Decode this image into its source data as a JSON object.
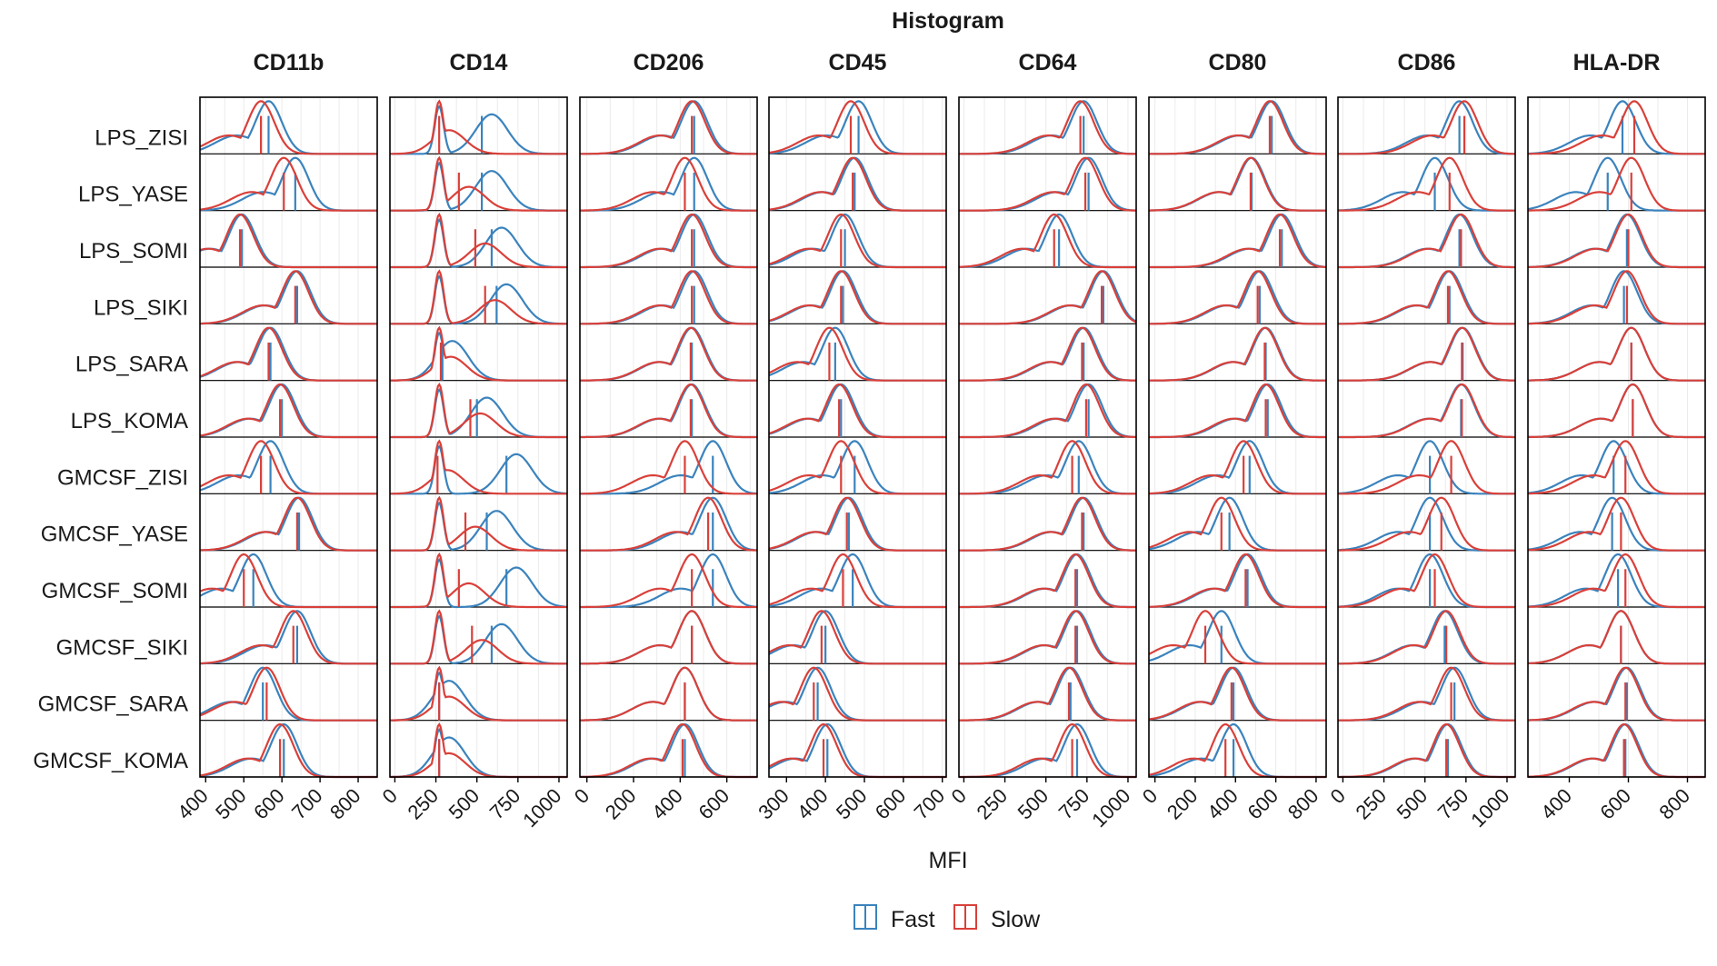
{
  "chart_data": {
    "type": "density-histogram-grid",
    "title": "Histogram",
    "xlabel": "MFI",
    "colors": {
      "Fast": "#3b83bd",
      "Slow": "#d9403a"
    },
    "legend": {
      "placement": "bottom-center",
      "entries": [
        "Fast",
        "Slow"
      ]
    },
    "grid": true,
    "samples": [
      "LPS_ZISI",
      "LPS_YASE",
      "LPS_SOMI",
      "LPS_SIKI",
      "LPS_SARA",
      "LPS_KOMA",
      "GMCSF_ZISI",
      "GMCSF_YASE",
      "GMCSF_SOMI",
      "GMCSF_SIKI",
      "GMCSF_SARA",
      "GMCSF_KOMA"
    ],
    "markers": [
      {
        "name": "CD11b",
        "xlim": [
          385,
          850
        ],
        "ticks": [
          400,
          500,
          600,
          700,
          800
        ],
        "fast_medians": [
          565,
          635,
          495,
          640,
          570,
          600,
          570,
          645,
          525,
          640,
          550,
          605
        ],
        "slow_medians": [
          545,
          605,
          490,
          635,
          565,
          595,
          545,
          640,
          500,
          630,
          560,
          595
        ]
      },
      {
        "name": "CD14",
        "xlim": [
          -30,
          1050
        ],
        "ticks": [
          0,
          250,
          500,
          750,
          1000
        ],
        "fast_medians": [
          530,
          530,
          590,
          620,
          290,
          500,
          680,
          560,
          680,
          590,
          270,
          270
        ],
        "slow_medians": [
          270,
          390,
          490,
          550,
          280,
          460,
          260,
          430,
          390,
          470,
          270,
          270
        ],
        "fast_peaks": [
          [
            700,
            280,
            0.75
          ]
        ],
        "bimodal": true
      },
      {
        "name": "CD206",
        "xlim": [
          -30,
          730
        ],
        "ticks": [
          0,
          200,
          400,
          600
        ],
        "fast_medians": [
          460,
          460,
          460,
          460,
          450,
          450,
          540,
          540,
          540,
          450,
          420,
          420
        ],
        "slow_medians": [
          450,
          420,
          450,
          450,
          445,
          445,
          420,
          520,
          450,
          450,
          420,
          410
        ]
      },
      {
        "name": "CD45",
        "xlim": [
          255,
          710
        ],
        "ticks": [
          300,
          400,
          500,
          600,
          700
        ],
        "fast_medians": [
          485,
          475,
          450,
          445,
          425,
          440,
          475,
          460,
          470,
          400,
          380,
          405
        ],
        "slow_medians": [
          465,
          470,
          440,
          440,
          410,
          435,
          440,
          455,
          445,
          390,
          370,
          395
        ]
      },
      {
        "name": "CD64",
        "xlim": [
          -30,
          1050
        ],
        "ticks": [
          0,
          250,
          500,
          750,
          1000
        ],
        "fast_medians": [
          730,
          760,
          580,
          850,
          730,
          760,
          700,
          730,
          690,
          690,
          650,
          690
        ],
        "slow_medians": [
          710,
          740,
          550,
          840,
          720,
          745,
          660,
          720,
          680,
          680,
          640,
          660
        ]
      },
      {
        "name": "CD80",
        "xlim": [
          -30,
          850
        ],
        "ticks": [
          0,
          200,
          400,
          600,
          800
        ],
        "fast_medians": [
          580,
          480,
          630,
          520,
          550,
          560,
          470,
          370,
          460,
          330,
          390,
          390
        ],
        "slow_medians": [
          570,
          475,
          620,
          510,
          545,
          550,
          440,
          330,
          450,
          250,
          380,
          350
        ]
      },
      {
        "name": "CD86",
        "xlim": [
          -30,
          1050
        ],
        "ticks": [
          0,
          250,
          500,
          750,
          1000
        ],
        "fast_medians": [
          710,
          560,
          710,
          650,
          730,
          720,
          530,
          530,
          530,
          620,
          680,
          640
        ],
        "slow_medians": [
          740,
          650,
          720,
          640,
          725,
          725,
          660,
          600,
          560,
          630,
          660,
          630
        ]
      },
      {
        "name": "HLA-DR",
        "xlim": [
          260,
          860
        ],
        "ticks": [
          400,
          600,
          800
        ],
        "fast_medians": [
          580,
          530,
          595,
          585,
          610,
          615,
          550,
          545,
          565,
          575,
          595,
          590
        ],
        "slow_medians": [
          620,
          610,
          600,
          595,
          610,
          615,
          590,
          575,
          590,
          575,
          590,
          585
        ]
      }
    ]
  }
}
